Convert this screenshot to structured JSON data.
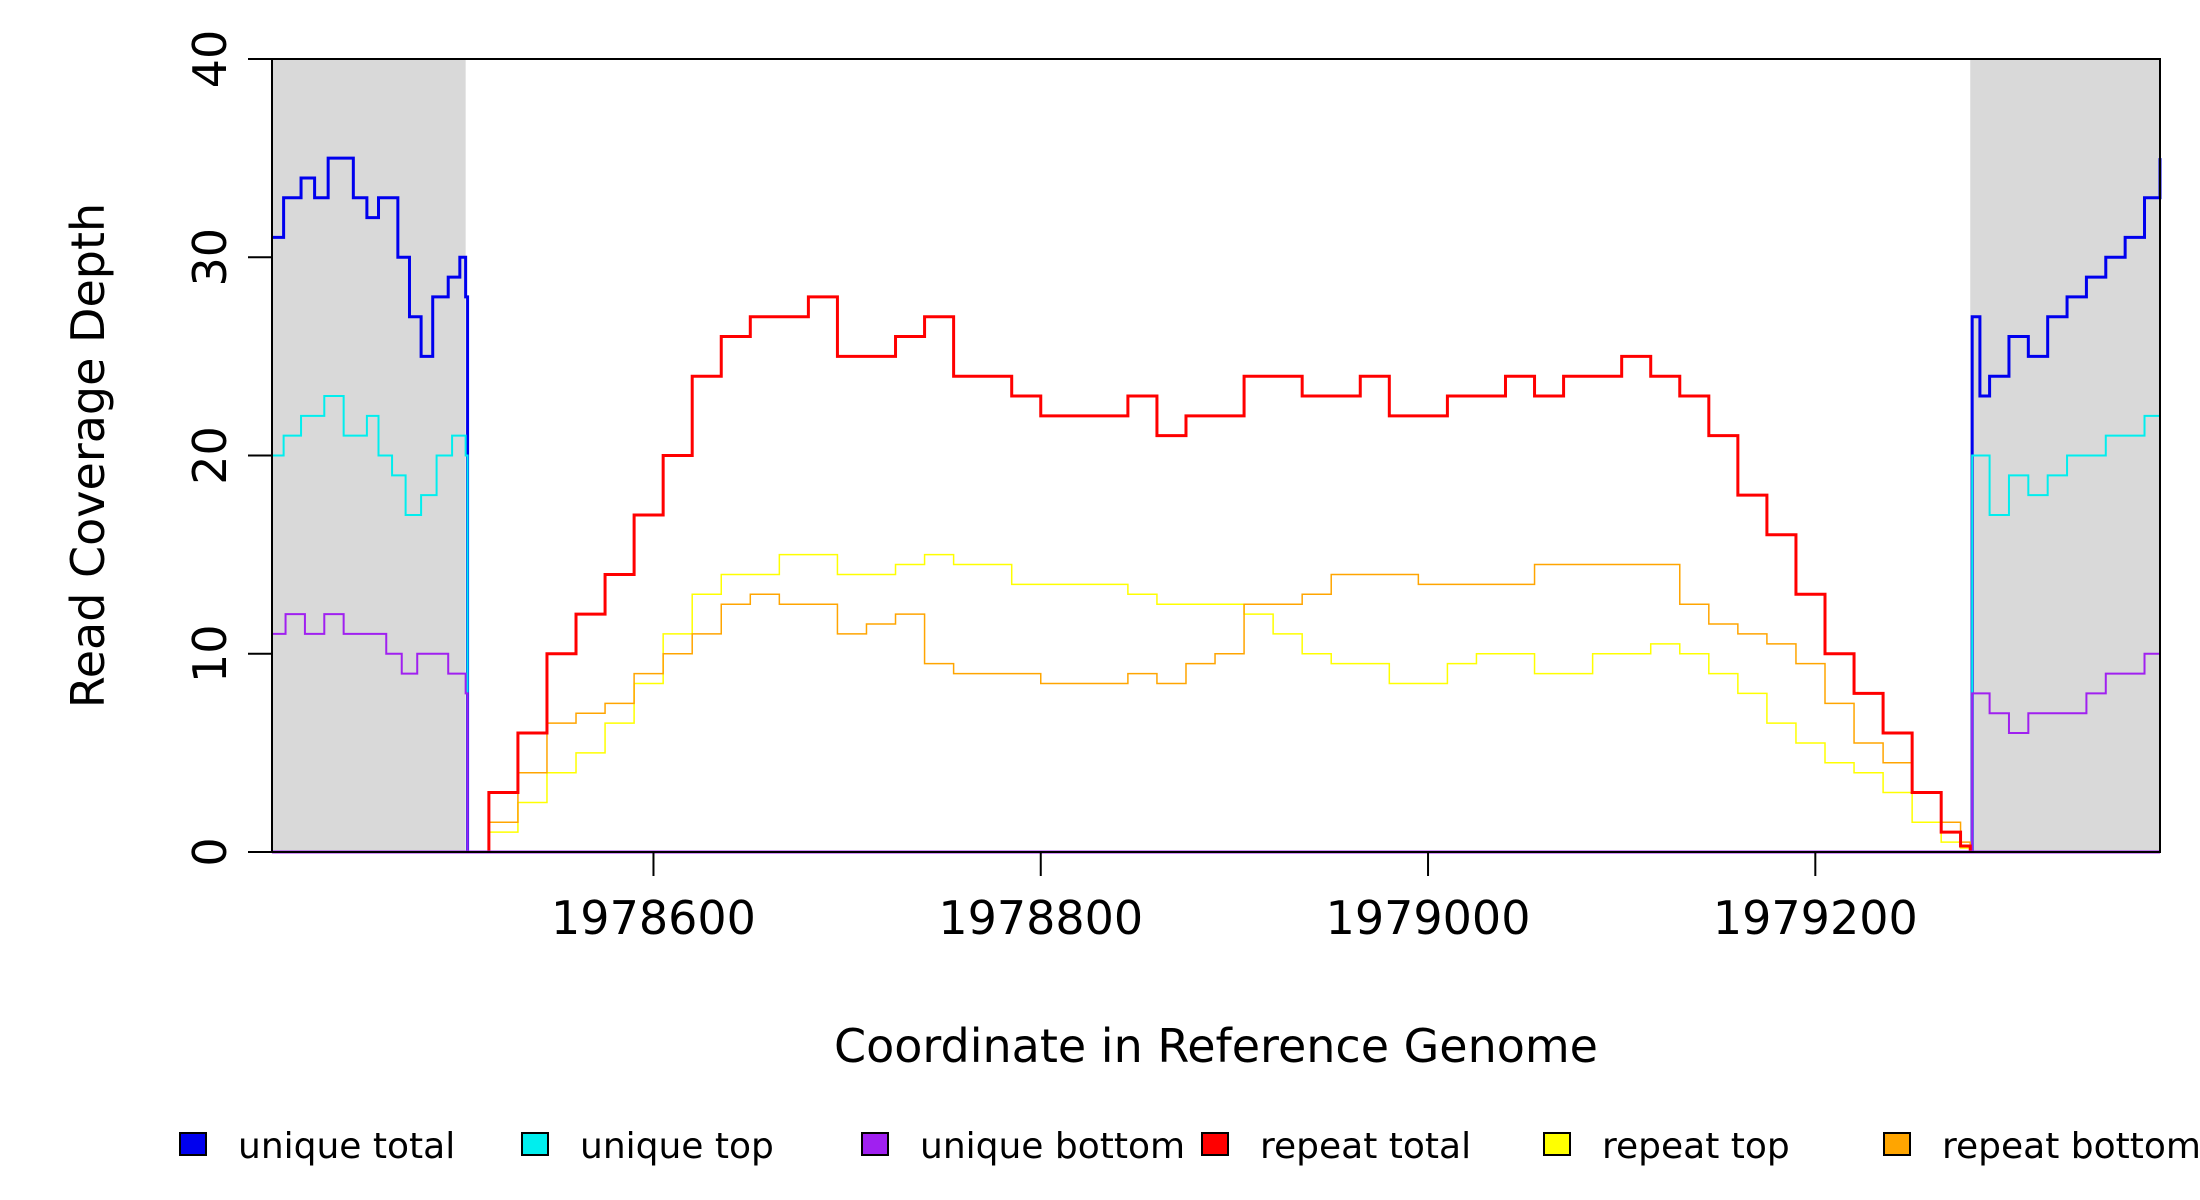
{
  "chart_data": {
    "type": "line",
    "title": "",
    "xlabel": "Coordinate in Reference Genome",
    "ylabel": "Read Coverage Depth",
    "xlim": [
      1978403,
      1979378
    ],
    "ylim": [
      0,
      40
    ],
    "x_ticks": [
      1978600,
      1978800,
      1979000,
      1979200
    ],
    "y_ticks": [
      0,
      10,
      20,
      30,
      40
    ],
    "shaded_regions": [
      {
        "from": 1978403,
        "to": 1978503,
        "color": "#d9d9d9"
      },
      {
        "from": 1979280,
        "to": 1979378,
        "color": "#d9d9d9"
      }
    ],
    "legend_position": "bottom",
    "series": [
      {
        "name": "unique total",
        "color": "#0000ee",
        "width": 3,
        "x": [
          1978403,
          1978409,
          1978418,
          1978425,
          1978432,
          1978445,
          1978452,
          1978458,
          1978468,
          1978474,
          1978480,
          1978486,
          1978494,
          1978500,
          1978503,
          1978504,
          1979280,
          1979281,
          1979285,
          1979290,
          1979300,
          1979310,
          1979320,
          1979330,
          1979340,
          1979350,
          1979360,
          1979370,
          1979378
        ],
        "y": [
          31,
          33,
          34,
          33,
          35,
          33,
          32,
          33,
          30,
          27,
          25,
          28,
          29,
          30,
          28,
          0,
          0,
          27,
          23,
          24,
          26,
          25,
          27,
          28,
          29,
          30,
          31,
          33,
          35
        ]
      },
      {
        "name": "unique top",
        "color": "#00eeee",
        "width": 2,
        "x": [
          1978403,
          1978409,
          1978418,
          1978430,
          1978440,
          1978452,
          1978458,
          1978465,
          1978472,
          1978480,
          1978488,
          1978496,
          1978503,
          1978504,
          1979280,
          1979281,
          1979290,
          1979300,
          1979310,
          1979320,
          1979330,
          1979340,
          1979350,
          1979360,
          1979370,
          1979378
        ],
        "y": [
          20,
          21,
          22,
          23,
          21,
          22,
          20,
          19,
          17,
          18,
          20,
          21,
          20,
          0,
          0,
          20,
          17,
          19,
          18,
          19,
          20,
          20,
          21,
          21,
          22,
          23
        ]
      },
      {
        "name": "unique bottom",
        "color": "#a020f0",
        "width": 2,
        "x": [
          1978403,
          1978410,
          1978420,
          1978430,
          1978440,
          1978455,
          1978462,
          1978470,
          1978478,
          1978486,
          1978494,
          1978503,
          1978504,
          1979280,
          1979281,
          1979290,
          1979300,
          1979310,
          1979320,
          1979330,
          1979340,
          1979350,
          1979360,
          1979370,
          1979378
        ],
        "y": [
          11,
          12,
          11,
          12,
          11,
          11,
          10,
          9,
          10,
          10,
          9,
          8,
          0,
          0,
          8,
          7,
          6,
          7,
          7,
          7,
          8,
          9,
          9,
          10,
          12
        ]
      },
      {
        "name": "repeat total",
        "color": "#ff0000",
        "width": 3,
        "x": [
          1978503,
          1978515,
          1978530,
          1978545,
          1978560,
          1978575,
          1978590,
          1978605,
          1978620,
          1978635,
          1978650,
          1978665,
          1978680,
          1978695,
          1978710,
          1978725,
          1978740,
          1978755,
          1978770,
          1978785,
          1978800,
          1978815,
          1978830,
          1978845,
          1978860,
          1978875,
          1978890,
          1978905,
          1978920,
          1978935,
          1978950,
          1978965,
          1978980,
          1978995,
          1979010,
          1979025,
          1979040,
          1979055,
          1979070,
          1979085,
          1979100,
          1979115,
          1979130,
          1979145,
          1979160,
          1979175,
          1979190,
          1979205,
          1979220,
          1979235,
          1979250,
          1979265,
          1979275,
          1979280
        ],
        "y": [
          0,
          3,
          6,
          10,
          12,
          14,
          17,
          20,
          24,
          26,
          27,
          27,
          28,
          25,
          25,
          26,
          27,
          24,
          24,
          23,
          22,
          22,
          22,
          23,
          21,
          22,
          22,
          24,
          24,
          23,
          23,
          24,
          22,
          22,
          23,
          23,
          24,
          23,
          24,
          24,
          25,
          24,
          23,
          21,
          18,
          16,
          13,
          10,
          8,
          6,
          3,
          1,
          0.3,
          0
        ]
      },
      {
        "name": "repeat top",
        "color": "#ffff00",
        "width": 1.5,
        "x": [
          1978503,
          1978515,
          1978530,
          1978545,
          1978560,
          1978575,
          1978590,
          1978605,
          1978620,
          1978635,
          1978650,
          1978665,
          1978680,
          1978695,
          1978710,
          1978725,
          1978740,
          1978755,
          1978770,
          1978785,
          1978800,
          1978815,
          1978830,
          1978845,
          1978860,
          1978875,
          1978890,
          1978905,
          1978920,
          1978935,
          1978950,
          1978965,
          1978980,
          1978995,
          1979010,
          1979025,
          1979040,
          1979055,
          1979070,
          1979085,
          1979100,
          1979115,
          1979130,
          1979145,
          1979160,
          1979175,
          1979190,
          1979205,
          1979220,
          1979235,
          1979250,
          1979265,
          1979275,
          1979280
        ],
        "y": [
          0,
          1,
          2.5,
          4,
          5,
          6.5,
          8.5,
          11,
          13,
          14,
          14,
          15,
          15,
          14,
          14,
          14.5,
          15,
          14.5,
          14.5,
          13.5,
          13.5,
          13.5,
          13.5,
          13,
          12.5,
          12.5,
          12.5,
          12,
          11,
          10,
          9.5,
          9.5,
          8.5,
          8.5,
          9.5,
          10,
          10,
          9,
          9,
          10,
          10,
          10.5,
          10,
          9,
          8,
          6.5,
          5.5,
          4.5,
          4,
          3,
          1.5,
          0.5,
          0.2,
          0
        ]
      },
      {
        "name": "repeat bottom",
        "color": "#ffa500",
        "width": 1.5,
        "x": [
          1978503,
          1978515,
          1978530,
          1978545,
          1978560,
          1978575,
          1978590,
          1978605,
          1978620,
          1978635,
          1978650,
          1978665,
          1978680,
          1978695,
          1978710,
          1978725,
          1978740,
          1978755,
          1978770,
          1978785,
          1978800,
          1978815,
          1978830,
          1978845,
          1978860,
          1978875,
          1978890,
          1978905,
          1978920,
          1978935,
          1978950,
          1978965,
          1978980,
          1978995,
          1979010,
          1979025,
          1979040,
          1979055,
          1979070,
          1979085,
          1979100,
          1979115,
          1979130,
          1979145,
          1979160,
          1979175,
          1979190,
          1979205,
          1979220,
          1979235,
          1979250,
          1979265,
          1979275,
          1979280
        ],
        "y": [
          0,
          1.5,
          4,
          6.5,
          7,
          7.5,
          9,
          10,
          11,
          12.5,
          13,
          12.5,
          12.5,
          11,
          11.5,
          12,
          9.5,
          9,
          9,
          9,
          8.5,
          8.5,
          8.5,
          9,
          8.5,
          9.5,
          10,
          12.5,
          12.5,
          13,
          14,
          14,
          14,
          13.5,
          13.5,
          13.5,
          13.5,
          14.5,
          14.5,
          14.5,
          14.5,
          14.5,
          12.5,
          11.5,
          11,
          10.5,
          9.5,
          7.5,
          5.5,
          4.5,
          3,
          1.5,
          0.5,
          0
        ]
      }
    ]
  }
}
